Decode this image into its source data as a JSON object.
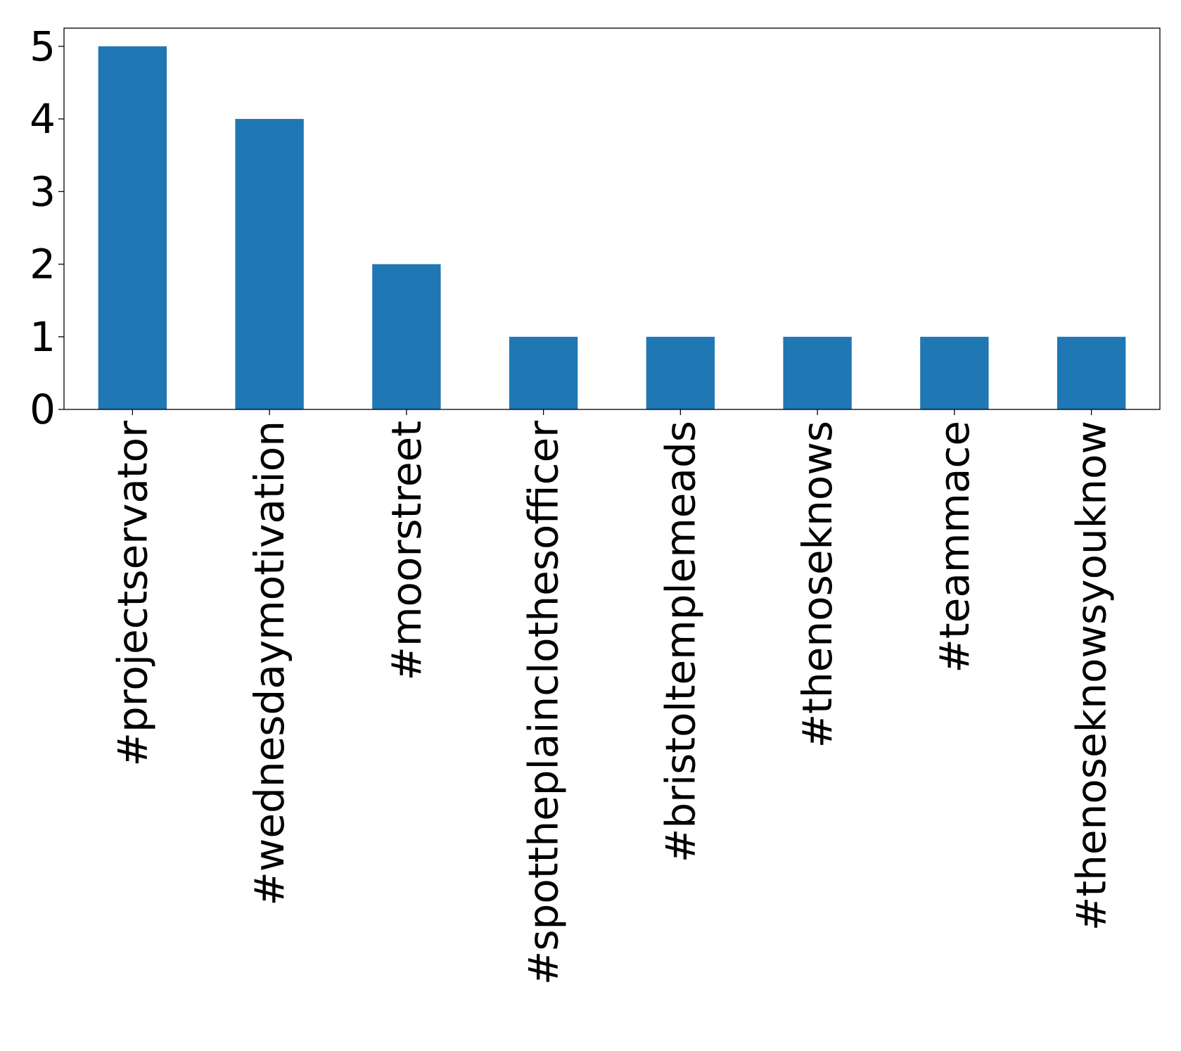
{
  "chart_data": {
    "type": "bar",
    "title": "",
    "xlabel": "",
    "ylabel": "",
    "categories": [
      "#projectservator",
      "#wednesdaymotivation",
      "#moorstreet",
      "#spottheplainclothesofficer",
      "#bristoltemplemeads",
      "#thenoseknows",
      "#teammace",
      "#thenoseknowsyouknow"
    ],
    "values": [
      5,
      4,
      2,
      1,
      1,
      1,
      1,
      1
    ],
    "ylim": [
      0,
      5.25
    ],
    "yticks": [
      0,
      1,
      2,
      3,
      4,
      5
    ],
    "grid": false,
    "legend": "none",
    "bar_color": "#1f77b4"
  }
}
